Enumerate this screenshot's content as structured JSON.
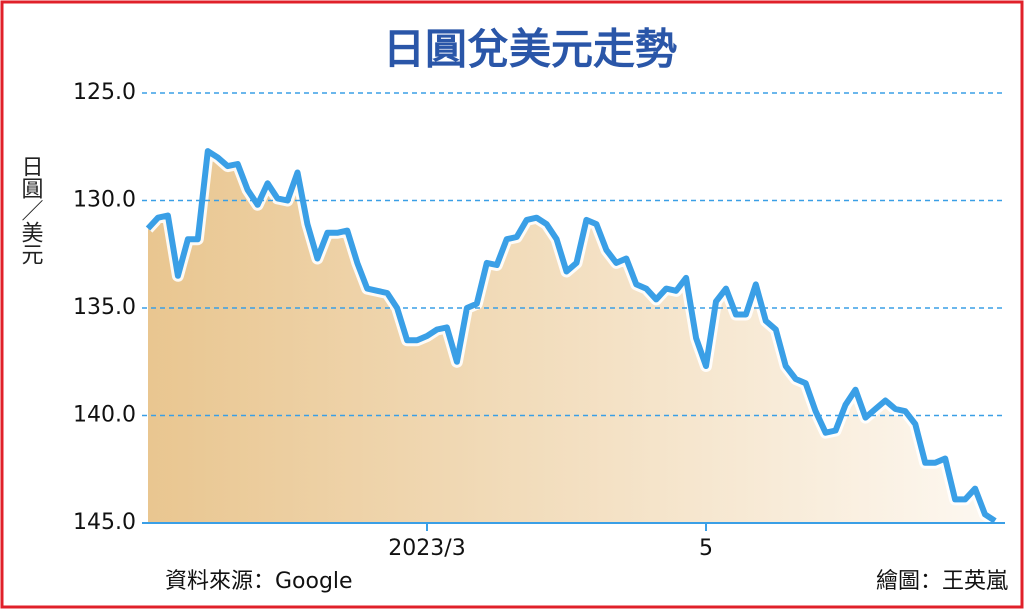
{
  "chart_data": {
    "type": "line",
    "title": "日圓兌美元走勢",
    "y_label": "日圓／美元",
    "source": "資料來源：Google",
    "credit": "繪圖：王英嵐",
    "categories": [
      null,
      null,
      null,
      null,
      null,
      null,
      null,
      null,
      null,
      null,
      null,
      null,
      null,
      null,
      null,
      null,
      null,
      null,
      null,
      null,
      null,
      null,
      null,
      null,
      null,
      null,
      null,
      null,
      "2023/3",
      null,
      null,
      null,
      null,
      null,
      null,
      null,
      null,
      null,
      null,
      null,
      null,
      null,
      null,
      null,
      null,
      null,
      null,
      null,
      null,
      null,
      null,
      null,
      null,
      null,
      null,
      null,
      "5",
      null,
      null,
      null,
      null,
      null,
      null,
      null,
      null,
      null,
      null,
      null,
      null,
      null,
      null,
      null,
      null,
      null,
      null,
      null,
      null,
      null,
      null,
      null,
      null,
      null,
      null,
      null,
      null,
      null
    ],
    "series": [
      {
        "name": "日圓兌美元",
        "color": "#3a9fe6",
        "values": [
          131.3,
          130.8,
          130.7,
          133.5,
          131.8,
          131.8,
          127.7,
          128.0,
          128.4,
          128.3,
          129.5,
          130.2,
          129.2,
          129.9,
          130.0,
          128.7,
          131.1,
          132.7,
          131.5,
          131.5,
          131.4,
          132.9,
          134.1,
          134.2,
          134.3,
          135.0,
          136.5,
          136.5,
          136.3,
          136.0,
          135.9,
          137.5,
          135.0,
          134.8,
          132.9,
          133.0,
          131.8,
          131.7,
          130.9,
          130.8,
          131.1,
          131.8,
          133.3,
          132.9,
          130.9,
          131.1,
          132.3,
          132.9,
          132.7,
          133.9,
          134.1,
          134.6,
          134.1,
          134.2,
          133.6,
          136.4,
          137.7,
          134.7,
          134.1,
          135.3,
          135.3,
          133.9,
          135.6,
          136.0,
          137.7,
          138.3,
          138.5,
          139.8,
          140.8,
          140.7,
          139.5,
          138.8,
          140.1,
          139.7,
          139.3,
          139.7,
          139.8,
          140.4,
          142.2,
          142.2,
          142.0,
          143.9,
          143.9,
          143.4,
          144.6,
          144.9
        ]
      }
    ],
    "ylim": [
      145,
      125
    ],
    "yticks": [
      {
        "value": 125,
        "label": "125.0"
      },
      {
        "value": 130,
        "label": "130.0"
      },
      {
        "value": 135,
        "label": "135.0"
      },
      {
        "value": 140,
        "label": "140.0"
      },
      {
        "value": 145,
        "label": "145.0"
      }
    ],
    "grid": true
  }
}
